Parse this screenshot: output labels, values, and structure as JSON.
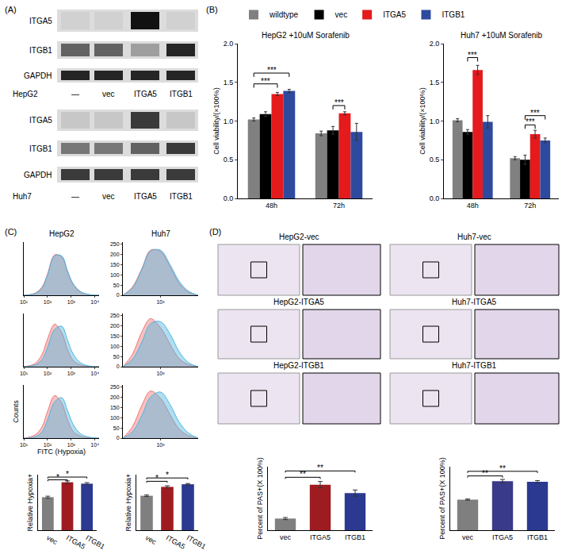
{
  "panel_labels": [
    "(A)",
    "(B)",
    "(C)",
    "(D)"
  ],
  "blots": {
    "lanes": [
      "—",
      "vec",
      "ITGA5",
      "ITGB1"
    ],
    "proteins": [
      "ITGA5",
      "ITGB1",
      "GAPDH"
    ],
    "cell_lines": [
      {
        "name": "HepG2",
        "intensity": [
          [
            0.05,
            0.05,
            1,
            0.05
          ],
          [
            0.6,
            0.6,
            0.3,
            0.9
          ],
          [
            0.9,
            0.9,
            0.9,
            0.9
          ]
        ]
      },
      {
        "name": "Huh7",
        "intensity": [
          [
            0.1,
            0.1,
            0.8,
            0.1
          ],
          [
            0.5,
            0.5,
            0.6,
            0.8
          ],
          [
            0.8,
            0.8,
            0.8,
            0.8
          ]
        ]
      }
    ]
  },
  "images": {
    "tiles": [
      "HepG2-vec",
      "Huh7-vec",
      "HepG2-ITGA5",
      "Huh7-ITGA5",
      "HepG2-ITGB1",
      "Huh7-ITGB1"
    ]
  },
  "chart_data": [
    {
      "type": "bar",
      "title": "HepG2 +10uM Sorafenib",
      "y_label": "Cell viability/(×100%)",
      "categories": [
        "48h",
        "72h"
      ],
      "series": [
        {
          "name": "wildtype",
          "color": "#808080",
          "values": [
            1.02,
            0.84
          ],
          "errors": [
            0.02,
            0.03
          ]
        },
        {
          "name": "vec",
          "color": "#000000",
          "values": [
            1.09,
            0.88
          ],
          "errors": [
            0.03,
            0.05
          ]
        },
        {
          "name": "ITGA5",
          "color": "#e41a1c",
          "values": [
            1.35,
            1.1
          ],
          "errors": [
            0.02,
            0.02
          ]
        },
        {
          "name": "ITGB1",
          "color": "#2e4a9e",
          "values": [
            1.39,
            0.86
          ],
          "errors": [
            0.02,
            0.11
          ]
        }
      ],
      "ylim": [
        0,
        2
      ],
      "yticks": [
        {
          "value": 0,
          "label": "0.0"
        },
        {
          "value": 0.5,
          "label": "0.5"
        },
        {
          "value": 1,
          "label": "1.0"
        },
        {
          "value": 1.5,
          "label": "1.5"
        },
        {
          "value": 2,
          "label": "2.0"
        }
      ],
      "significance": [
        {
          "category": "48h",
          "from": "wildtype",
          "to": "ITGA5",
          "y": 1.48,
          "label": "***"
        },
        {
          "category": "48h",
          "from": "wildtype",
          "to": "ITGB1",
          "y": 1.62,
          "label": "***"
        },
        {
          "category": "72h",
          "from": "vec",
          "to": "ITGA5",
          "y": 1.2,
          "label": "***"
        }
      ],
      "legend": "top"
    },
    {
      "type": "bar",
      "title": "Huh7 +10uM Sorafenib",
      "y_label": "Cell viability/(×100%)",
      "categories": [
        "48h",
        "72h"
      ],
      "series": [
        {
          "name": "wildtype",
          "color": "#808080",
          "values": [
            1.01,
            0.52
          ],
          "errors": [
            0.02,
            0.02
          ]
        },
        {
          "name": "vec",
          "color": "#000000",
          "values": [
            0.86,
            0.5
          ],
          "errors": [
            0.03,
            0.06
          ]
        },
        {
          "name": "ITGA5",
          "color": "#e41a1c",
          "values": [
            1.66,
            0.83
          ],
          "errors": [
            0.06,
            0.05
          ]
        },
        {
          "name": "ITGB1",
          "color": "#2e4a9e",
          "values": [
            0.99,
            0.75
          ],
          "errors": [
            0.08,
            0.03
          ]
        }
      ],
      "ylim": [
        0,
        2
      ],
      "yticks": [
        {
          "value": 0,
          "label": "0.0"
        },
        {
          "value": 0.5,
          "label": "0.5"
        },
        {
          "value": 1,
          "label": "1.0"
        },
        {
          "value": 1.5,
          "label": "1.5"
        },
        {
          "value": 2,
          "label": "2.0"
        }
      ],
      "significance": [
        {
          "category": "48h",
          "from": "vec",
          "to": "ITGA5",
          "y": 1.82,
          "label": "***"
        },
        {
          "category": "72h",
          "from": "vec",
          "to": "ITGA5",
          "y": 0.95,
          "label": "***"
        },
        {
          "category": "72h",
          "from": "vec",
          "to": "ITGB1",
          "y": 1.07,
          "label": "***"
        }
      ]
    },
    {
      "type": "area",
      "title": "HepG2",
      "x": [
        10,
        30,
        60,
        100,
        200,
        400,
        700,
        1200,
        2500,
        6000,
        15000
      ],
      "series": [
        {
          "color": "#f07575",
          "values": [
            0,
            10,
            40,
            100,
            190,
            180,
            110,
            50,
            15,
            2,
            0
          ]
        },
        {
          "color": "#4db6e0",
          "values": [
            0,
            8,
            35,
            95,
            185,
            185,
            115,
            55,
            17,
            3,
            0
          ]
        }
      ],
      "xlim": [
        10,
        15000
      ],
      "xticks": [
        {
          "value": 10,
          "label": "10¹"
        },
        {
          "value": 100,
          "label": "10²"
        },
        {
          "value": 1000,
          "label": "10³"
        },
        {
          "value": 10000,
          "label": "10⁴"
        }
      ],
      "ylim": [
        0,
        250
      ],
      "tick_labels": "x"
    },
    {
      "type": "area",
      "title": "Huh7",
      "x": [
        200,
        300,
        450,
        650,
        1000,
        1500,
        2200,
        3300,
        5000
      ],
      "series": [
        {
          "color": "#f07575",
          "values": [
            0,
            40,
            130,
            220,
            215,
            140,
            60,
            15,
            0
          ]
        },
        {
          "color": "#4db6e0",
          "values": [
            0,
            35,
            125,
            215,
            220,
            150,
            70,
            20,
            0
          ]
        }
      ],
      "xlim": [
        200,
        5000
      ],
      "xticks": [
        {
          "value": 1000,
          "label": "10³"
        }
      ],
      "ylim": [
        0,
        260
      ],
      "yticks": [
        0,
        50,
        100,
        150,
        200,
        250
      ]
    },
    {
      "type": "area",
      "x": [
        10,
        30,
        60,
        100,
        200,
        400,
        700,
        1200,
        2500,
        6000,
        15000
      ],
      "series": [
        {
          "color": "#f07575",
          "values": [
            0,
            15,
            60,
            130,
            200,
            160,
            80,
            30,
            8,
            1,
            0
          ]
        },
        {
          "color": "#4db6e0",
          "values": [
            0,
            8,
            35,
            90,
            175,
            190,
            125,
            60,
            18,
            3,
            0
          ]
        }
      ],
      "xlim": [
        10,
        15000
      ],
      "xticks": [
        {
          "value": 10,
          "label": "10¹"
        },
        {
          "value": 100,
          "label": "10²"
        },
        {
          "value": 1000,
          "label": "10³"
        },
        {
          "value": 10000,
          "label": "10⁴"
        }
      ],
      "ylim": [
        0,
        250
      ],
      "tick_labels": "x"
    },
    {
      "type": "area",
      "x": [
        200,
        300,
        450,
        650,
        1000,
        1500,
        2200,
        3300,
        5000
      ],
      "series": [
        {
          "color": "#f07575",
          "values": [
            0,
            60,
            170,
            235,
            190,
            110,
            40,
            10,
            0
          ]
        },
        {
          "color": "#4db6e0",
          "values": [
            0,
            35,
            120,
            210,
            220,
            160,
            75,
            20,
            0
          ]
        }
      ],
      "xlim": [
        200,
        5000
      ],
      "xticks": [
        {
          "value": 1000,
          "label": "10³"
        }
      ],
      "ylim": [
        0,
        260
      ],
      "yticks": [
        0,
        50,
        100,
        150,
        200,
        250
      ]
    },
    {
      "type": "area",
      "x_label": "FITC (Hypoxia)",
      "y_label": "Counts",
      "x": [
        10,
        30,
        60,
        100,
        200,
        400,
        700,
        1200,
        2500,
        6000,
        15000
      ],
      "series": [
        {
          "color": "#f07575",
          "values": [
            0,
            15,
            55,
            125,
            200,
            165,
            85,
            32,
            9,
            1,
            0
          ]
        },
        {
          "color": "#4db6e0",
          "values": [
            0,
            6,
            30,
            85,
            170,
            190,
            130,
            65,
            20,
            4,
            0
          ]
        }
      ],
      "xlim": [
        10,
        15000
      ],
      "xticks": [
        {
          "value": 10,
          "label": "10¹"
        },
        {
          "value": 100,
          "label": "10²"
        },
        {
          "value": 1000,
          "label": "10³"
        },
        {
          "value": 10000,
          "label": "10⁴"
        }
      ],
      "ylim": [
        0,
        250
      ],
      "tick_labels": "x"
    },
    {
      "type": "area",
      "x": [
        200,
        300,
        450,
        650,
        1000,
        1500,
        2200,
        3300,
        5000
      ],
      "series": [
        {
          "color": "#f07575",
          "values": [
            0,
            55,
            160,
            230,
            195,
            115,
            45,
            12,
            0
          ]
        },
        {
          "color": "#4db6e0",
          "values": [
            0,
            30,
            110,
            200,
            225,
            165,
            80,
            25,
            0
          ]
        }
      ],
      "xlim": [
        200,
        5000
      ],
      "xticks": [
        {
          "value": 1000,
          "label": "10³"
        }
      ],
      "ylim": [
        0,
        260
      ],
      "yticks": [
        0,
        50,
        100,
        150,
        200,
        250
      ]
    },
    {
      "type": "bar",
      "y_label": "Relative Hypoxia+",
      "categories": [
        "vec",
        "ITGA5",
        "ITGB1"
      ],
      "values": [
        0.95,
        1.38,
        1.34
      ],
      "errors": [
        0.03,
        0.04,
        0.03
      ],
      "colors": [
        "#7f7f7f",
        "#9e1c20",
        "#2b3990"
      ],
      "ylim": [
        0,
        1.6
      ],
      "tick_labels": "x",
      "significance": [
        {
          "from": "vec",
          "to": "ITGA5",
          "y": 1.45,
          "label": "*"
        },
        {
          "from": "vec",
          "to": "ITGB1",
          "y": 1.53,
          "label": "*"
        }
      ]
    },
    {
      "type": "bar",
      "y_label": "Relative Hypoxia+",
      "categories": [
        "vec",
        "ITGA5",
        "ITGB1"
      ],
      "values": [
        0.93,
        1.17,
        1.24
      ],
      "errors": [
        0.02,
        0.03,
        0.02
      ],
      "colors": [
        "#7f7f7f",
        "#9e1c20",
        "#2b3990"
      ],
      "ylim": [
        0,
        1.5
      ],
      "tick_labels": "x",
      "significance": [
        {
          "from": "vec",
          "to": "ITGA5",
          "y": 1.32,
          "label": "*"
        },
        {
          "from": "vec",
          "to": "ITGB1",
          "y": 1.41,
          "label": "*"
        }
      ]
    },
    {
      "type": "bar",
      "y_label": "Percent of PAS+(X 100%)",
      "categories": [
        "vec",
        "ITGA5",
        "ITGB1"
      ],
      "values": [
        0.11,
        0.43,
        0.35
      ],
      "errors": [
        0.01,
        0.03,
        0.03
      ],
      "colors": [
        "#7f7f7f",
        "#9e1c20",
        "#2b3990"
      ],
      "ylim": [
        0,
        0.6
      ],
      "tick_labels": "x",
      "significance": [
        {
          "from": "vec",
          "to": "ITGA5",
          "y": 0.5,
          "label": "**"
        },
        {
          "from": "vec",
          "to": "ITGB1",
          "y": 0.56,
          "label": "**"
        }
      ]
    },
    {
      "type": "bar",
      "y_label": "Percent of PAS+(X 100%)",
      "categories": [
        "vec",
        "ITGA5",
        "ITGB1"
      ],
      "values": [
        0.53,
        0.85,
        0.84
      ],
      "errors": [
        0.01,
        0.03,
        0.02
      ],
      "colors": [
        "#7f7f7f",
        "#3a3a8a",
        "#2b3990"
      ],
      "ylim": [
        0,
        1.1
      ],
      "tick_labels": "x",
      "significance": [
        {
          "from": "vec",
          "to": "ITGA5",
          "y": 0.94,
          "label": "**"
        },
        {
          "from": "vec",
          "to": "ITGB1",
          "y": 1.02,
          "label": "**"
        }
      ]
    }
  ]
}
